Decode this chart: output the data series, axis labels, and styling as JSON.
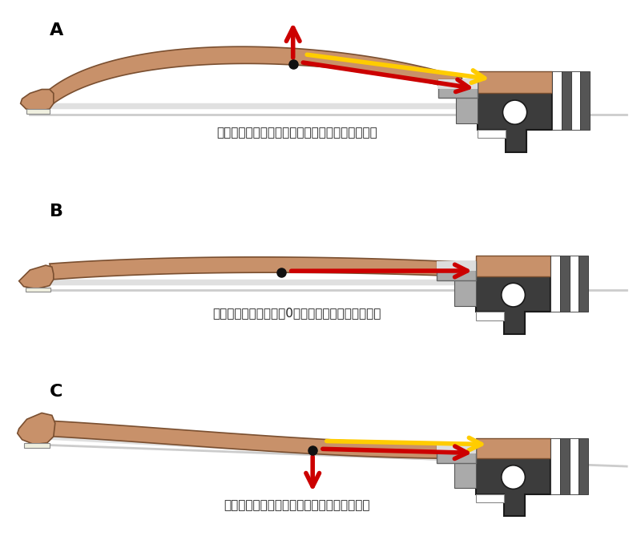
{
  "label_A": "自然と上向きの力が生まれ、弓が浮いてしまう。",
  "label_B": "下向きの吸い付く力が0なので、弓が跳ねやすい。",
  "label_C": "自然と下向きの「吸い付く力」が生まれる。",
  "bg_color": "#ffffff",
  "stick_color": "#c8916a",
  "stick_edge": "#7a4f30",
  "hair_color": "#d8d8d8",
  "shadow_color": "#bbbbbb",
  "frog_dark": "#3c3c3c",
  "frog_edge": "#1a1a1a",
  "metal_color": "#999999",
  "metal_light": "#cccccc",
  "arrow_red": "#cc0000",
  "arrow_yellow": "#ffcc00",
  "dot_color": "#111111"
}
